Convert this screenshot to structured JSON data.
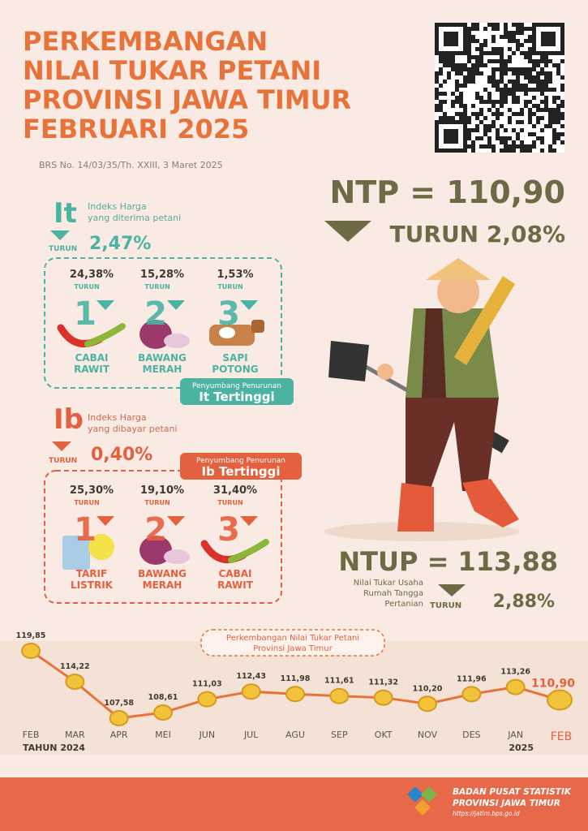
{
  "header": {
    "title_lines": [
      "PERKEMBANGAN",
      "NILAI TUKAR PETANI",
      "PROVINSI JAWA TIMUR",
      "FEBRUARI 2025"
    ],
    "release": "BRS No. 14/03/35/Th. XXIII, 3 Maret 2025"
  },
  "ntp": {
    "label": "NTP = 110,90",
    "change": "TURUN 2,08%"
  },
  "it": {
    "symbol": "It",
    "desc_lines": [
      "Indeks Harga",
      "yang diterima petani"
    ],
    "direction": "TURUN",
    "change": "2,47%",
    "caption_lines": [
      "Penyumbang Penurunan",
      "It Tertinggi"
    ],
    "items": [
      {
        "pct": "24,38%",
        "direction": "TURUN",
        "rank": "1",
        "name_lines": [
          "CABAI",
          "RAWIT"
        ]
      },
      {
        "pct": "15,28%",
        "direction": "TURUN",
        "rank": "2",
        "name_lines": [
          "BAWANG",
          "MERAH"
        ]
      },
      {
        "pct": "1,53%",
        "direction": "TURUN",
        "rank": "3",
        "name_lines": [
          "SAPI",
          "POTONG"
        ]
      }
    ]
  },
  "ib": {
    "symbol": "Ib",
    "desc_lines": [
      "Indeks Harga",
      "yang dibayar petani"
    ],
    "direction": "TURUN",
    "change": "0,40%",
    "caption_lines": [
      "Penyumbang Penurunan",
      "Ib Tertinggi"
    ],
    "items": [
      {
        "pct": "25,30%",
        "direction": "TURUN",
        "rank": "1",
        "name_lines": [
          "TARIF",
          "LISTRIK"
        ]
      },
      {
        "pct": "19,10%",
        "direction": "TURUN",
        "rank": "2",
        "name_lines": [
          "BAWANG",
          "MERAH"
        ]
      },
      {
        "pct": "31,40%",
        "direction": "TURUN",
        "rank": "3",
        "name_lines": [
          "CABAI",
          "RAWIT"
        ]
      }
    ]
  },
  "ntup": {
    "label": "NTUP = 113,88",
    "desc_lines": [
      "Nilai Tukar Usaha",
      "Rumah Tangga",
      "Pertanian"
    ],
    "direction": "TURUN",
    "change": "2,88%"
  },
  "chart_data": {
    "type": "line",
    "title_lines": [
      "Perkembangan Nilai Tukar Petani",
      "Provinsi Jawa Timur"
    ],
    "categories": [
      "FEB",
      "MAR",
      "APR",
      "MEI",
      "JUN",
      "JUL",
      "AGU",
      "SEP",
      "OKT",
      "NOV",
      "DES",
      "JAN",
      "FEB"
    ],
    "values": [
      119.85,
      114.22,
      107.58,
      108.61,
      111.03,
      112.43,
      111.98,
      111.61,
      111.32,
      110.2,
      111.96,
      113.26,
      110.9
    ],
    "value_labels": [
      "119,85",
      "114,22",
      "107,58",
      "108,61",
      "111,03",
      "112,43",
      "111,98",
      "111,61",
      "111,32",
      "110,20",
      "111,96",
      "113,26",
      "110,90"
    ],
    "color": "#e8733a",
    "year_labels": [
      "TAHUN 2024",
      "2025"
    ]
  },
  "footer": {
    "org_lines": [
      "BADAN PUSAT STATISTIK",
      "PROVINSI JAWA TIMUR"
    ],
    "url": "https://jatim.bps.go.id"
  }
}
